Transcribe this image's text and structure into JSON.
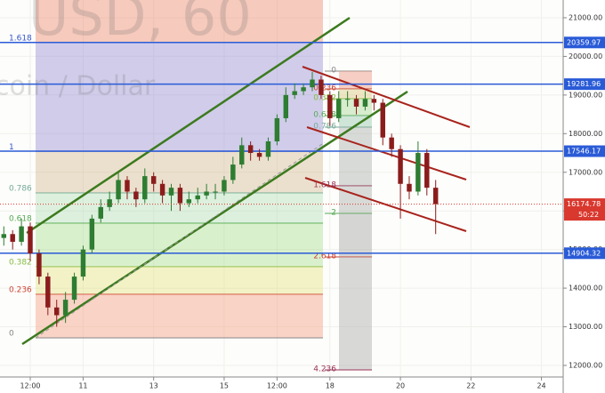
{
  "chart_data": {
    "type": "candlestick",
    "watermark": "USD, 60",
    "subtitle": "coin / Dollar",
    "x": [
      -6,
      0,
      6,
      12,
      18,
      24,
      30,
      36,
      42,
      48,
      54,
      60,
      66,
      72,
      78,
      84,
      90,
      96,
      102,
      108,
      114,
      120,
      126,
      132,
      138,
      144,
      150,
      156,
      162,
      168,
      174,
      180,
      186,
      192,
      198,
      204,
      210,
      216,
      222,
      228,
      234,
      240,
      246,
      252,
      258,
      264,
      270,
      276,
      282,
      288
    ],
    "open": [
      15300,
      15400,
      15200,
      15600,
      14900,
      14300,
      13500,
      13300,
      13700,
      14300,
      15000,
      15800,
      16100,
      16300,
      16800,
      16500,
      16300,
      16900,
      16700,
      16400,
      16600,
      16200,
      16300,
      16400,
      16500,
      16500,
      16800,
      17200,
      17700,
      17500,
      17400,
      17800,
      18400,
      19000,
      19100,
      19200,
      19400,
      19000,
      18400,
      18900,
      18900,
      18700,
      18900,
      18800,
      17900,
      17600,
      16700,
      16500,
      17500,
      16600
    ],
    "high": [
      15600,
      15500,
      15800,
      15700,
      15000,
      14400,
      13700,
      13900,
      14400,
      15100,
      15900,
      16300,
      16500,
      17000,
      16900,
      16600,
      17100,
      17000,
      16800,
      16700,
      16700,
      16500,
      16600,
      16700,
      16700,
      16900,
      17400,
      17900,
      17800,
      17600,
      17900,
      18500,
      19200,
      19300,
      19300,
      19600,
      19500,
      19100,
      19100,
      19100,
      19000,
      19100,
      19000,
      18900,
      18000,
      17700,
      16900,
      17800,
      17600,
      16800
    ],
    "low": [
      15100,
      15000,
      15100,
      14700,
      14100,
      13300,
      13000,
      13100,
      13600,
      14200,
      14900,
      15700,
      16000,
      16200,
      16300,
      16100,
      16200,
      16500,
      16200,
      16000,
      16000,
      16100,
      16200,
      16300,
      16300,
      16400,
      16700,
      17100,
      17300,
      17300,
      17300,
      17700,
      18300,
      18900,
      19000,
      19100,
      18900,
      18200,
      18300,
      18700,
      18500,
      18600,
      18600,
      17700,
      17400,
      15800,
      16300,
      16400,
      16400,
      15400
    ],
    "close": [
      15400,
      15200,
      15600,
      14900,
      14300,
      13500,
      13300,
      13700,
      14300,
      15000,
      15800,
      16100,
      16300,
      16800,
      16500,
      16300,
      16900,
      16700,
      16400,
      16600,
      16200,
      16300,
      16400,
      16500,
      16500,
      16800,
      17200,
      17700,
      17500,
      17400,
      17800,
      18400,
      19000,
      19100,
      19200,
      19400,
      19000,
      18400,
      18900,
      18900,
      18700,
      18900,
      18800,
      17900,
      17600,
      16700,
      16500,
      17500,
      16600,
      16174.78
    ],
    "up_color": "#2e7d32",
    "down_color": "#8b1c1c",
    "xlim": [
      -8.6,
      374.8
    ],
    "ylim": [
      11700,
      21460
    ],
    "xticks": [
      {
        "value": 12,
        "label": "12:00"
      },
      {
        "value": 48,
        "label": "11"
      },
      {
        "value": 96,
        "label": "13"
      },
      {
        "value": 144,
        "label": "15"
      },
      {
        "value": 180,
        "label": "12:00"
      },
      {
        "value": 216,
        "label": "18"
      },
      {
        "value": 264,
        "label": "20"
      },
      {
        "value": 312,
        "label": "22"
      },
      {
        "value": 360,
        "label": "24"
      }
    ],
    "yticks": [
      {
        "value": 12000,
        "label": "12000.00"
      },
      {
        "value": 13000,
        "label": "13000.00"
      },
      {
        "value": 14000,
        "label": "14000.00"
      },
      {
        "value": 15000,
        "label": "15000.00"
      },
      {
        "value": 16000,
        "label": "16000.00"
      },
      {
        "value": 17000,
        "label": "17000.00"
      },
      {
        "value": 18000,
        "label": "18000.00"
      },
      {
        "value": 19000,
        "label": "19000.00"
      },
      {
        "value": 20000,
        "label": "20000.00"
      },
      {
        "value": 21000,
        "label": "21000.00"
      }
    ],
    "grid": true,
    "price_lines": [
      20359.97,
      19281.96,
      17546.17,
      14904.32
    ],
    "price_line_color": "#2a5bd7",
    "last_price": 16174.78,
    "last_price_color": "#d9382e",
    "countdown": "50:22",
    "fib_retracement": [
      {
        "value": 20360,
        "label": "1.618"
      },
      {
        "value": 17540,
        "label": "1"
      },
      {
        "value": 16465,
        "label": "0.786"
      },
      {
        "value": 15682,
        "label": "0.618"
      },
      {
        "value": 14554,
        "label": "0.382"
      },
      {
        "value": 13841,
        "label": "0.236"
      },
      {
        "value": 12713,
        "label": "0"
      }
    ],
    "fib_extension": [
      {
        "value": 19619,
        "label": "0"
      },
      {
        "value": 19158,
        "label": "0.236"
      },
      {
        "value": 18905,
        "label": "0.382"
      },
      {
        "value": 18468,
        "label": "0.618"
      },
      {
        "value": 18168,
        "label": "0.786"
      },
      {
        "value": 16649,
        "label": "1.618"
      },
      {
        "value": 15936,
        "label": "2"
      },
      {
        "value": 14808,
        "label": "2.618"
      },
      {
        "value": 11884,
        "label": "4.236"
      }
    ]
  }
}
